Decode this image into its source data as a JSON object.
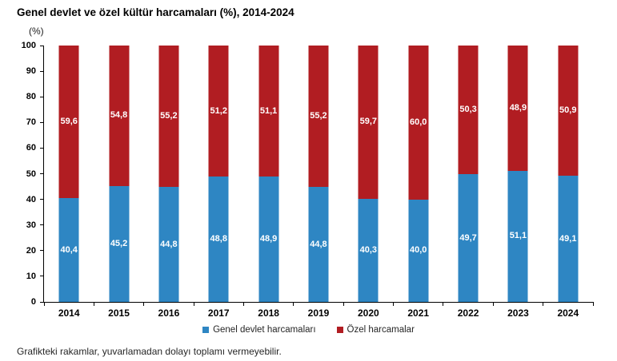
{
  "title": "Genel devlet ve özel kültür harcamaları (%), 2014-2024",
  "unit_label": "(%)",
  "footer_note": "Grafikteki rakamlar, yuvarlamadan dolayı toplamı vermeyebilir.",
  "legend": {
    "items": [
      {
        "label": "Genel devlet harcamaları",
        "color": "#2E86C3"
      },
      {
        "label": "Özel harcamalar",
        "color": "#B11D22"
      }
    ]
  },
  "chart_data": {
    "type": "bar",
    "stacked": true,
    "title": "Genel devlet ve özel kültür harcamaları (%), 2014-2024",
    "xlabel": "",
    "ylabel": "(%)",
    "ylim": [
      0,
      100
    ],
    "ytick_step": 10,
    "grid": false,
    "legend_position": "bottom",
    "categories": [
      "2014",
      "2015",
      "2016",
      "2017",
      "2018",
      "2019",
      "2020",
      "2021",
      "2022",
      "2023",
      "2024"
    ],
    "series": [
      {
        "name": "Genel devlet harcamaları",
        "color": "#2E86C3",
        "values": [
          40.4,
          45.2,
          44.8,
          48.8,
          48.9,
          44.8,
          40.3,
          40.0,
          49.7,
          51.1,
          49.1
        ],
        "labels": [
          "40,4",
          "45,2",
          "44,8",
          "48,8",
          "48,9",
          "44,8",
          "40,3",
          "40,0",
          "49,7",
          "51,1",
          "49,1"
        ]
      },
      {
        "name": "Özel harcamalar",
        "color": "#B11D22",
        "values": [
          59.6,
          54.8,
          55.2,
          51.2,
          51.1,
          55.2,
          59.7,
          60.0,
          50.3,
          48.9,
          50.9
        ],
        "labels": [
          "59,6",
          "54,8",
          "55,2",
          "51,2",
          "51,1",
          "55,2",
          "59,7",
          "60,0",
          "50,3",
          "48,9",
          "50,9"
        ]
      }
    ]
  }
}
